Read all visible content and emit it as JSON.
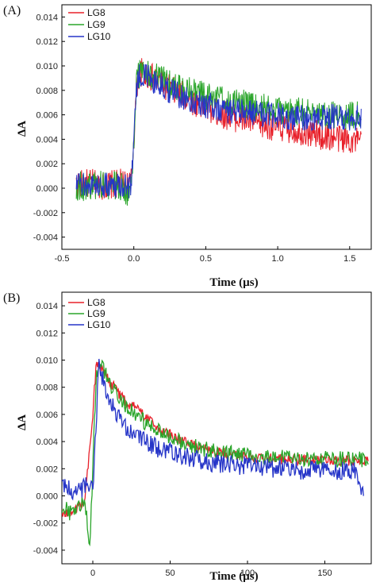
{
  "chart_data": [
    {
      "panel_label": "(A)",
      "type": "line",
      "xlabel": "Time (µs)",
      "ylabel": "ΔA",
      "xlim": [
        -0.5,
        1.65
      ],
      "ylim": [
        -0.005,
        0.015
      ],
      "xticks": [
        -0.5,
        0.0,
        0.5,
        1.0,
        1.5
      ],
      "xtick_labels": [
        "-0.5",
        "0.0",
        "0.5",
        "1.0",
        "1.5"
      ],
      "yticks": [
        -0.004,
        -0.002,
        0.0,
        0.002,
        0.004,
        0.006,
        0.008,
        0.01,
        0.012,
        0.014
      ],
      "ytick_labels": [
        "-0.004",
        "-0.002",
        "0.000",
        "0.002",
        "0.004",
        "0.006",
        "0.008",
        "0.010",
        "0.012",
        "0.014"
      ],
      "legend_position": "top-left",
      "grid": false,
      "series": [
        {
          "name": "LG8",
          "color": "#e8202a",
          "x": [
            -0.4,
            -0.3,
            -0.2,
            -0.1,
            -0.02,
            0.0,
            0.02,
            0.05,
            0.1,
            0.2,
            0.3,
            0.4,
            0.5,
            0.6,
            0.7,
            0.8,
            0.9,
            1.0,
            1.1,
            1.2,
            1.3,
            1.4,
            1.5,
            1.58
          ],
          "y": [
            0.0003,
            0.0004,
            0.0002,
            0.0004,
            0.0003,
            0.004,
            0.0085,
            0.0095,
            0.0092,
            0.0085,
            0.0078,
            0.0072,
            0.0066,
            0.0061,
            0.0058,
            0.0055,
            0.0052,
            0.005,
            0.0048,
            0.0046,
            0.0043,
            0.0041,
            0.004,
            0.0037
          ],
          "noise": 0.0012
        },
        {
          "name": "LG9",
          "color": "#2aa52a",
          "x": [
            -0.4,
            -0.3,
            -0.2,
            -0.1,
            -0.02,
            0.0,
            0.02,
            0.05,
            0.1,
            0.2,
            0.3,
            0.4,
            0.5,
            0.6,
            0.7,
            0.8,
            0.9,
            1.0,
            1.1,
            1.2,
            1.3,
            1.4,
            1.5,
            1.58
          ],
          "y": [
            0.0002,
            0.0001,
            0.0003,
            0.0002,
            -0.0005,
            0.004,
            0.0088,
            0.0097,
            0.0093,
            0.0088,
            0.0083,
            0.0079,
            0.0075,
            0.0072,
            0.007,
            0.0068,
            0.0066,
            0.0064,
            0.0063,
            0.0062,
            0.0061,
            0.006,
            0.006,
            0.006
          ],
          "noise": 0.0012
        },
        {
          "name": "LG10",
          "color": "#2635c8",
          "x": [
            -0.4,
            -0.3,
            -0.2,
            -0.1,
            -0.02,
            0.0,
            0.02,
            0.05,
            0.1,
            0.2,
            0.3,
            0.4,
            0.5,
            0.6,
            0.7,
            0.8,
            0.9,
            1.0,
            1.1,
            1.2,
            1.3,
            1.4,
            1.5,
            1.58
          ],
          "y": [
            0.0002,
            0.0003,
            0.0002,
            0.0003,
            0.0002,
            0.004,
            0.0085,
            0.0094,
            0.009,
            0.0083,
            0.0077,
            0.0072,
            0.0068,
            0.0065,
            0.0063,
            0.0062,
            0.006,
            0.0059,
            0.0058,
            0.0058,
            0.0058,
            0.0058,
            0.0058,
            0.0058
          ],
          "noise": 0.0011
        }
      ]
    },
    {
      "panel_label": "(B)",
      "type": "line",
      "xlabel": "Time (µs)",
      "ylabel": "ΔA",
      "xlim": [
        -20,
        180
      ],
      "ylim": [
        -0.005,
        0.015
      ],
      "xticks": [
        0,
        50,
        100,
        150
      ],
      "xtick_labels": [
        "0",
        "50",
        "100",
        "150"
      ],
      "yticks": [
        -0.004,
        -0.002,
        0.0,
        0.002,
        0.004,
        0.006,
        0.008,
        0.01,
        0.012,
        0.014
      ],
      "ytick_labels": [
        "-0.004",
        "-0.002",
        "0.000",
        "0.002",
        "0.004",
        "0.006",
        "0.008",
        "0.010",
        "0.012",
        "0.014"
      ],
      "legend_position": "top-left",
      "grid": false,
      "series": [
        {
          "name": "LG8",
          "color": "#e8202a",
          "x": [
            -20,
            -15,
            -10,
            -5,
            0,
            2,
            4,
            6,
            10,
            15,
            20,
            30,
            40,
            50,
            60,
            70,
            80,
            90,
            100,
            110,
            120,
            130,
            140,
            150,
            160,
            170,
            178
          ],
          "y": [
            -0.0012,
            -0.0014,
            -0.001,
            -0.0003,
            0.006,
            0.0095,
            0.0099,
            0.0094,
            0.0086,
            0.0078,
            0.0071,
            0.0062,
            0.0052,
            0.0045,
            0.0039,
            0.0035,
            0.0033,
            0.0031,
            0.0029,
            0.0028,
            0.0027,
            0.0027,
            0.0026,
            0.0026,
            0.0026,
            0.0026,
            0.0026
          ],
          "noise": 0.0004
        },
        {
          "name": "LG9",
          "color": "#2aa52a",
          "x": [
            -20,
            -15,
            -10,
            -5,
            -2,
            0,
            2,
            4,
            6,
            10,
            15,
            20,
            30,
            40,
            50,
            60,
            70,
            80,
            90,
            100,
            110,
            120,
            130,
            140,
            150,
            160,
            170,
            178
          ],
          "y": [
            -0.0008,
            -0.0012,
            -0.0008,
            -0.0004,
            -0.0038,
            0.002,
            0.0085,
            0.0101,
            0.0095,
            0.0085,
            0.0075,
            0.0067,
            0.0057,
            0.0049,
            0.0043,
            0.0038,
            0.0035,
            0.0033,
            0.0031,
            0.003,
            0.0029,
            0.0028,
            0.0028,
            0.0027,
            0.0027,
            0.0027,
            0.0027,
            0.0027
          ],
          "noise": 0.0006
        },
        {
          "name": "LG10",
          "color": "#2635c8",
          "x": [
            -20,
            -15,
            -10,
            -5,
            0,
            2,
            4,
            6,
            10,
            15,
            20,
            30,
            40,
            50,
            60,
            70,
            80,
            90,
            100,
            110,
            120,
            130,
            140,
            150,
            160,
            170,
            175
          ],
          "y": [
            0.0012,
            0.0004,
            0.0002,
            0.0008,
            0.0003,
            0.005,
            0.0098,
            0.0088,
            0.0073,
            0.006,
            0.0051,
            0.0042,
            0.0036,
            0.0032,
            0.0029,
            0.0026,
            0.0024,
            0.0023,
            0.0022,
            0.0021,
            0.002,
            0.0019,
            0.0019,
            0.0018,
            0.0018,
            0.0018,
            0.0001
          ],
          "noise": 0.0007
        }
      ]
    }
  ]
}
